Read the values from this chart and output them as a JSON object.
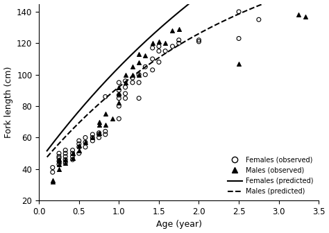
{
  "title": "",
  "xlabel": "Age (year)",
  "ylabel": "Fork length (cm)",
  "xlim": [
    0,
    3.5
  ],
  "ylim": [
    20,
    145
  ],
  "xticks": [
    0.0,
    0.5,
    1.0,
    1.5,
    2.0,
    2.5,
    3.0,
    3.5
  ],
  "yticks": [
    20,
    40,
    60,
    80,
    100,
    120,
    140
  ],
  "females_obs": [
    [
      0.17,
      38
    ],
    [
      0.17,
      41
    ],
    [
      0.25,
      43
    ],
    [
      0.25,
      45
    ],
    [
      0.25,
      47
    ],
    [
      0.25,
      48
    ],
    [
      0.25,
      50
    ],
    [
      0.33,
      44
    ],
    [
      0.33,
      46
    ],
    [
      0.33,
      48
    ],
    [
      0.33,
      50
    ],
    [
      0.33,
      52
    ],
    [
      0.42,
      46
    ],
    [
      0.42,
      48
    ],
    [
      0.42,
      50
    ],
    [
      0.42,
      52
    ],
    [
      0.5,
      50
    ],
    [
      0.5,
      54
    ],
    [
      0.5,
      56
    ],
    [
      0.5,
      58
    ],
    [
      0.58,
      54
    ],
    [
      0.58,
      57
    ],
    [
      0.58,
      60
    ],
    [
      0.67,
      58
    ],
    [
      0.67,
      60
    ],
    [
      0.67,
      62
    ],
    [
      0.75,
      60
    ],
    [
      0.75,
      62
    ],
    [
      0.75,
      63
    ],
    [
      0.83,
      62
    ],
    [
      0.83,
      64
    ],
    [
      0.83,
      86
    ],
    [
      1.0,
      72
    ],
    [
      1.0,
      80
    ],
    [
      1.0,
      85
    ],
    [
      1.0,
      87
    ],
    [
      1.0,
      90
    ],
    [
      1.0,
      95
    ],
    [
      1.08,
      85
    ],
    [
      1.08,
      88
    ],
    [
      1.08,
      92
    ],
    [
      1.08,
      96
    ],
    [
      1.17,
      95
    ],
    [
      1.17,
      98
    ],
    [
      1.25,
      85
    ],
    [
      1.25,
      95
    ],
    [
      1.25,
      100
    ],
    [
      1.33,
      100
    ],
    [
      1.33,
      105
    ],
    [
      1.42,
      103
    ],
    [
      1.42,
      110
    ],
    [
      1.42,
      117
    ],
    [
      1.5,
      108
    ],
    [
      1.5,
      115
    ],
    [
      1.5,
      118
    ],
    [
      1.58,
      115
    ],
    [
      1.67,
      118
    ],
    [
      1.75,
      120
    ],
    [
      1.75,
      122
    ],
    [
      2.0,
      121
    ],
    [
      2.0,
      122
    ],
    [
      2.5,
      140
    ],
    [
      2.5,
      123
    ],
    [
      2.75,
      135
    ]
  ],
  "males_obs": [
    [
      0.17,
      32
    ],
    [
      0.17,
      33
    ],
    [
      0.25,
      40
    ],
    [
      0.25,
      43
    ],
    [
      0.25,
      45
    ],
    [
      0.25,
      46
    ],
    [
      0.33,
      44
    ],
    [
      0.33,
      46
    ],
    [
      0.42,
      47
    ],
    [
      0.42,
      50
    ],
    [
      0.5,
      52
    ],
    [
      0.5,
      55
    ],
    [
      0.58,
      57
    ],
    [
      0.67,
      60
    ],
    [
      0.75,
      63
    ],
    [
      0.75,
      68
    ],
    [
      0.75,
      70
    ],
    [
      0.83,
      68
    ],
    [
      0.83,
      75
    ],
    [
      0.92,
      72
    ],
    [
      1.0,
      82
    ],
    [
      1.0,
      88
    ],
    [
      1.0,
      92
    ],
    [
      1.08,
      95
    ],
    [
      1.08,
      100
    ],
    [
      1.17,
      100
    ],
    [
      1.17,
      105
    ],
    [
      1.25,
      100
    ],
    [
      1.25,
      108
    ],
    [
      1.25,
      113
    ],
    [
      1.33,
      112
    ],
    [
      1.42,
      120
    ],
    [
      1.5,
      121
    ],
    [
      1.58,
      120
    ],
    [
      1.67,
      128
    ],
    [
      1.75,
      129
    ],
    [
      2.5,
      107
    ],
    [
      3.25,
      138
    ],
    [
      3.33,
      137
    ]
  ],
  "vb_females": {
    "Linf": 290.0,
    "K": 0.28,
    "t0": -0.6
  },
  "vb_males": {
    "Linf": 195.0,
    "K": 0.4,
    "t0": -0.6
  },
  "bg_color": "#ffffff",
  "obs_color": "#000000",
  "line_color": "#000000"
}
